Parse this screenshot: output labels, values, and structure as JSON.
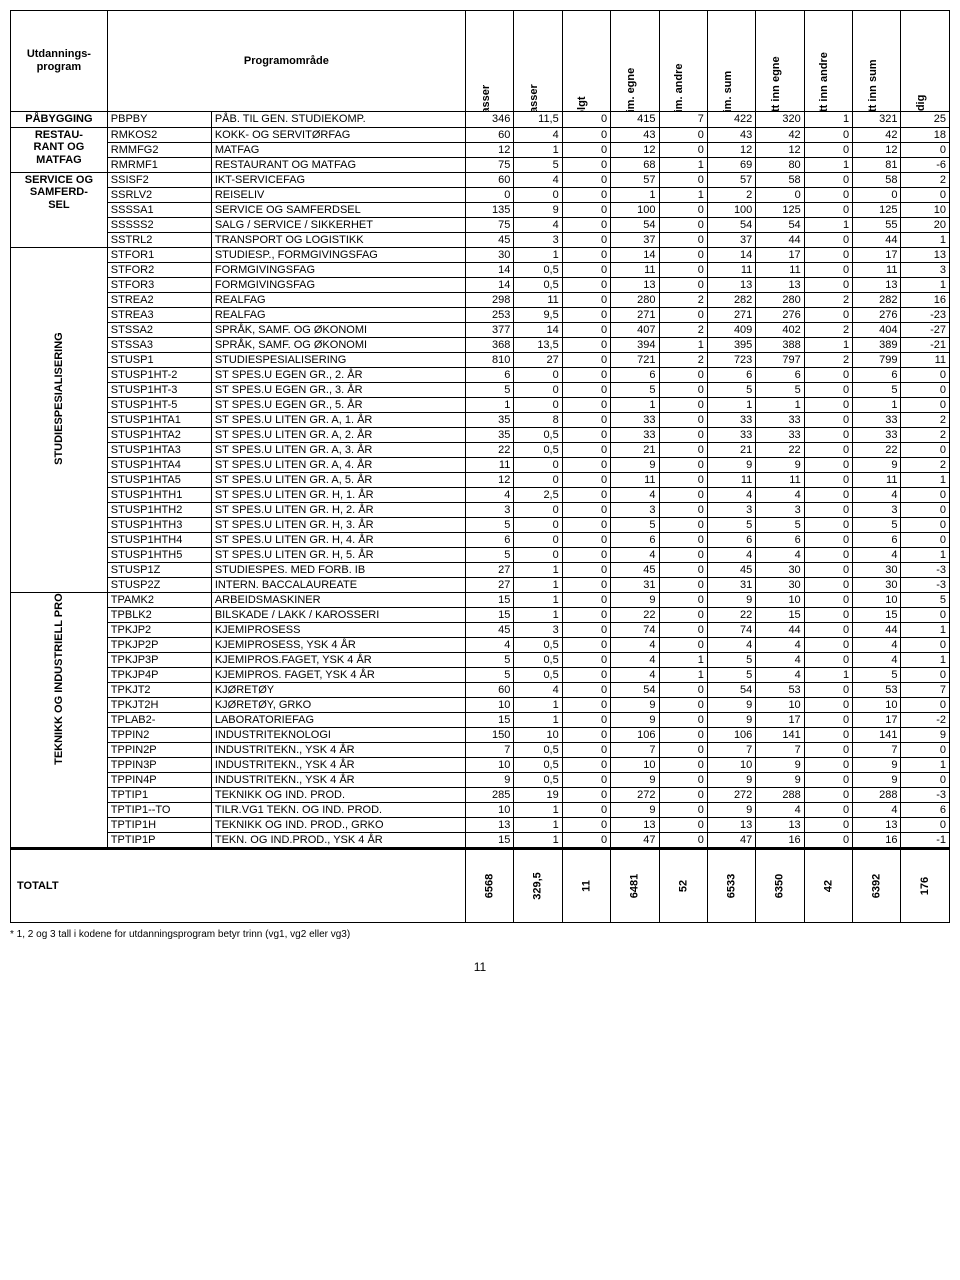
{
  "headers": {
    "program": "Utdannings-\nprogram",
    "area": "Programområde",
    "cols": [
      "Plasser",
      "Klasser",
      "Solgt",
      "Prim. egne",
      "Prim. andre",
      "Prim. sum",
      "Tatt inn egne",
      "Tatt inn andre",
      "Tatt inn sum",
      "Ledig"
    ]
  },
  "groups": [
    {
      "label": "PÅBYGGING",
      "rotated": false,
      "rows": [
        [
          "PBPBY",
          "PÅB. TIL GEN. STUDIEKOMP.",
          "346",
          "11,5",
          "0",
          "415",
          "7",
          "422",
          "320",
          "1",
          "321",
          "25"
        ]
      ]
    },
    {
      "label": "RESTAU-\nRANT OG\nMATFAG",
      "rotated": false,
      "rows": [
        [
          "RMKOS2",
          "KOKK- OG SERVITØRFAG",
          "60",
          "4",
          "0",
          "43",
          "0",
          "43",
          "42",
          "0",
          "42",
          "18"
        ],
        [
          "RMMFG2",
          "MATFAG",
          "12",
          "1",
          "0",
          "12",
          "0",
          "12",
          "12",
          "0",
          "12",
          "0"
        ],
        [
          "RMRMF1",
          "RESTAURANT OG MATFAG",
          "75",
          "5",
          "0",
          "68",
          "1",
          "69",
          "80",
          "1",
          "81",
          "-6"
        ]
      ]
    },
    {
      "label": "SERVICE OG\nSAMFERD-\nSEL",
      "rotated": false,
      "rows": [
        [
          "SSISF2",
          "IKT-SERVICEFAG",
          "60",
          "4",
          "0",
          "57",
          "0",
          "57",
          "58",
          "0",
          "58",
          "2"
        ],
        [
          "SSRLV2",
          "REISELIV",
          "0",
          "0",
          "0",
          "1",
          "1",
          "2",
          "0",
          "0",
          "0",
          "0"
        ],
        [
          "SSSSA1",
          "SERVICE OG SAMFERDSEL",
          "135",
          "9",
          "0",
          "100",
          "0",
          "100",
          "125",
          "0",
          "125",
          "10"
        ],
        [
          "SSSSS2",
          "SALG / SERVICE / SIKKERHET",
          "75",
          "4",
          "0",
          "54",
          "0",
          "54",
          "54",
          "1",
          "55",
          "20"
        ],
        [
          "SSTRL2",
          "TRANSPORT OG LOGISTIKK",
          "45",
          "3",
          "0",
          "37",
          "0",
          "37",
          "44",
          "0",
          "44",
          "1"
        ]
      ]
    },
    {
      "label": "STUDIESPESIALISERING",
      "rotated": true,
      "rows": [
        [
          "STFOR1",
          "STUDIESP., FORMGIVINGSFAG",
          "30",
          "1",
          "0",
          "14",
          "0",
          "14",
          "17",
          "0",
          "17",
          "13"
        ],
        [
          "STFOR2",
          "FORMGIVINGSFAG",
          "14",
          "0,5",
          "0",
          "11",
          "0",
          "11",
          "11",
          "0",
          "11",
          "3"
        ],
        [
          "STFOR3",
          "FORMGIVINGSFAG",
          "14",
          "0,5",
          "0",
          "13",
          "0",
          "13",
          "13",
          "0",
          "13",
          "1"
        ],
        [
          "STREA2",
          "REALFAG",
          "298",
          "11",
          "0",
          "280",
          "2",
          "282",
          "280",
          "2",
          "282",
          "16"
        ],
        [
          "STREA3",
          "REALFAG",
          "253",
          "9,5",
          "0",
          "271",
          "0",
          "271",
          "276",
          "0",
          "276",
          "-23"
        ],
        [
          "STSSA2",
          "SPRÅK, SAMF. OG ØKONOMI",
          "377",
          "14",
          "0",
          "407",
          "2",
          "409",
          "402",
          "2",
          "404",
          "-27"
        ],
        [
          "STSSA3",
          "SPRÅK, SAMF. OG ØKONOMI",
          "368",
          "13,5",
          "0",
          "394",
          "1",
          "395",
          "388",
          "1",
          "389",
          "-21"
        ],
        [
          "STUSP1",
          "STUDIESPESIALISERING",
          "810",
          "27",
          "0",
          "721",
          "2",
          "723",
          "797",
          "2",
          "799",
          "11"
        ],
        [
          "STUSP1HT-2",
          "ST SPES.U EGEN GR., 2. ÅR",
          "6",
          "0",
          "0",
          "6",
          "0",
          "6",
          "6",
          "0",
          "6",
          "0"
        ],
        [
          "STUSP1HT-3",
          "ST SPES.U EGEN GR., 3. ÅR",
          "5",
          "0",
          "0",
          "5",
          "0",
          "5",
          "5",
          "0",
          "5",
          "0"
        ],
        [
          "STUSP1HT-5",
          "ST SPES.U EGEN GR., 5. ÅR",
          "1",
          "0",
          "0",
          "1",
          "0",
          "1",
          "1",
          "0",
          "1",
          "0"
        ],
        [
          "STUSP1HTA1",
          "ST SPES.U LITEN GR. A, 1. ÅR",
          "35",
          "8",
          "0",
          "33",
          "0",
          "33",
          "33",
          "0",
          "33",
          "2"
        ],
        [
          "STUSP1HTA2",
          "ST SPES.U LITEN GR. A, 2. ÅR",
          "35",
          "0,5",
          "0",
          "33",
          "0",
          "33",
          "33",
          "0",
          "33",
          "2"
        ],
        [
          "STUSP1HTA3",
          "ST SPES.U LITEN GR. A, 3. ÅR",
          "22",
          "0,5",
          "0",
          "21",
          "0",
          "21",
          "22",
          "0",
          "22",
          "0"
        ],
        [
          "STUSP1HTA4",
          "ST SPES.U LITEN GR. A, 4. ÅR",
          "11",
          "0",
          "0",
          "9",
          "0",
          "9",
          "9",
          "0",
          "9",
          "2"
        ],
        [
          "STUSP1HTA5",
          "ST SPES.U LITEN GR. A, 5. ÅR",
          "12",
          "0",
          "0",
          "11",
          "0",
          "11",
          "11",
          "0",
          "11",
          "1"
        ],
        [
          "STUSP1HTH1",
          "ST SPES.U LITEN GR. H, 1. ÅR",
          "4",
          "2,5",
          "0",
          "4",
          "0",
          "4",
          "4",
          "0",
          "4",
          "0"
        ],
        [
          "STUSP1HTH2",
          "ST SPES.U LITEN GR. H, 2. ÅR",
          "3",
          "0",
          "0",
          "3",
          "0",
          "3",
          "3",
          "0",
          "3",
          "0"
        ],
        [
          "STUSP1HTH3",
          "ST SPES.U LITEN GR. H, 3. ÅR",
          "5",
          "0",
          "0",
          "5",
          "0",
          "5",
          "5",
          "0",
          "5",
          "0"
        ],
        [
          "STUSP1HTH4",
          "ST SPES.U LITEN GR. H, 4. ÅR",
          "6",
          "0",
          "0",
          "6",
          "0",
          "6",
          "6",
          "0",
          "6",
          "0"
        ],
        [
          "STUSP1HTH5",
          "ST SPES.U LITEN GR. H, 5. ÅR",
          "5",
          "0",
          "0",
          "4",
          "0",
          "4",
          "4",
          "0",
          "4",
          "1"
        ],
        [
          "STUSP1Z",
          "STUDIESPES. MED FORB. IB",
          "27",
          "1",
          "0",
          "45",
          "0",
          "45",
          "30",
          "0",
          "30",
          "-3"
        ],
        [
          "STUSP2Z",
          "INTERN. BACCALAUREATE",
          "27",
          "1",
          "0",
          "31",
          "0",
          "31",
          "30",
          "0",
          "30",
          "-3"
        ]
      ]
    },
    {
      "label": "TEKNIKK OG INDUSTRIELL PRODUK-SJON",
      "rotated": true,
      "rows": [
        [
          "TPAMK2",
          "ARBEIDSMASKINER",
          "15",
          "1",
          "0",
          "9",
          "0",
          "9",
          "10",
          "0",
          "10",
          "5"
        ],
        [
          "TPBLK2",
          "BILSKADE / LAKK / KAROSSERI",
          "15",
          "1",
          "0",
          "22",
          "0",
          "22",
          "15",
          "0",
          "15",
          "0"
        ],
        [
          "TPKJP2",
          "KJEMIPROSESS",
          "45",
          "3",
          "0",
          "74",
          "0",
          "74",
          "44",
          "0",
          "44",
          "1"
        ],
        [
          "TPKJP2P",
          "KJEMIPROSESS, YSK 4 ÅR",
          "4",
          "0,5",
          "0",
          "4",
          "0",
          "4",
          "4",
          "0",
          "4",
          "0"
        ],
        [
          "TPKJP3P",
          "KJEMIPROS.FAGET, YSK 4 ÅR",
          "5",
          "0,5",
          "0",
          "4",
          "1",
          "5",
          "4",
          "0",
          "4",
          "1"
        ],
        [
          "TPKJP4P",
          "KJEMIPROS. FAGET, YSK 4 ÅR",
          "5",
          "0,5",
          "0",
          "4",
          "1",
          "5",
          "4",
          "1",
          "5",
          "0"
        ],
        [
          "TPKJT2",
          "KJØRETØY",
          "60",
          "4",
          "0",
          "54",
          "0",
          "54",
          "53",
          "0",
          "53",
          "7"
        ],
        [
          "TPKJT2H",
          "KJØRETØY, GRKO",
          "10",
          "1",
          "0",
          "9",
          "0",
          "9",
          "10",
          "0",
          "10",
          "0"
        ],
        [
          "TPLAB2-",
          "LABORATORIEFAG",
          "15",
          "1",
          "0",
          "9",
          "0",
          "9",
          "17",
          "0",
          "17",
          "-2"
        ],
        [
          "TPPIN2",
          "INDUSTRITEKNOLOGI",
          "150",
          "10",
          "0",
          "106",
          "0",
          "106",
          "141",
          "0",
          "141",
          "9"
        ],
        [
          "TPPIN2P",
          "INDUSTRITEKN., YSK 4 ÅR",
          "7",
          "0,5",
          "0",
          "7",
          "0",
          "7",
          "7",
          "0",
          "7",
          "0"
        ],
        [
          "TPPIN3P",
          "INDUSTRITEKN., YSK 4 ÅR",
          "10",
          "0,5",
          "0",
          "10",
          "0",
          "10",
          "9",
          "0",
          "9",
          "1"
        ],
        [
          "TPPIN4P",
          "INDUSTRITEKN., YSK 4 ÅR",
          "9",
          "0,5",
          "0",
          "9",
          "0",
          "9",
          "9",
          "0",
          "9",
          "0"
        ],
        [
          "TPTIP1",
          "TEKNIKK OG IND. PROD.",
          "285",
          "19",
          "0",
          "272",
          "0",
          "272",
          "288",
          "0",
          "288",
          "-3"
        ],
        [
          "TPTIP1--TO",
          "TILR.VG1 TEKN. OG IND. PROD.",
          "10",
          "1",
          "0",
          "9",
          "0",
          "9",
          "4",
          "0",
          "4",
          "6"
        ],
        [
          "TPTIP1H",
          "TEKNIKK OG IND. PROD., GRKO",
          "13",
          "1",
          "0",
          "13",
          "0",
          "13",
          "13",
          "0",
          "13",
          "0"
        ],
        [
          "TPTIP1P",
          "TEKN. OG IND.PROD., YSK 4 ÅR",
          "15",
          "1",
          "0",
          "47",
          "0",
          "47",
          "16",
          "0",
          "16",
          "-1"
        ]
      ]
    }
  ],
  "totals": {
    "label": "TOTALT",
    "values": [
      "6568",
      "329,5",
      "11",
      "6481",
      "52",
      "6533",
      "6350",
      "42",
      "6392",
      "176"
    ]
  },
  "footnote": "* 1, 2 og 3 tall i kodene for utdanningsprogram betyr trinn (vg1, vg2 eller vg3)",
  "pagenum": "11"
}
